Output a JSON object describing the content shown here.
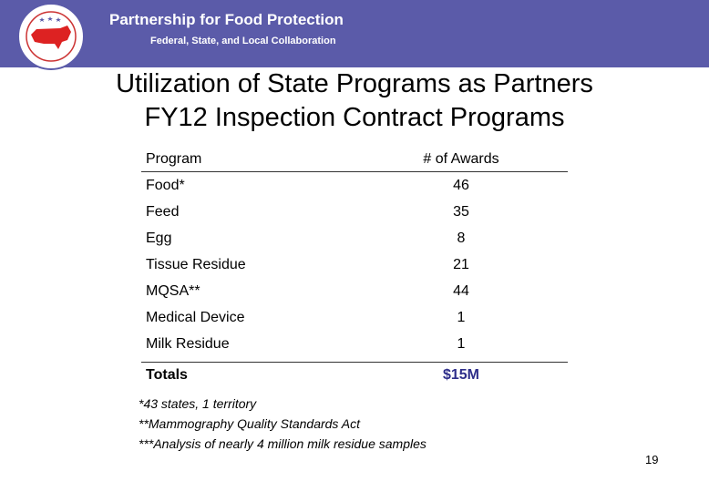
{
  "header": {
    "title": "Partnership for Food Protection",
    "subtitle": "Federal, State, and Local Collaboration"
  },
  "slide": {
    "title": [
      "Utilization of State Programs as Partners",
      "FY12 Inspection Contract Programs"
    ]
  },
  "table": {
    "columns": [
      "Program",
      "# of Awards"
    ],
    "rows": [
      [
        "Food*",
        46
      ],
      [
        "Feed",
        35
      ],
      [
        "Egg",
        8
      ],
      [
        "Tissue Residue",
        21
      ],
      [
        "MQSA**",
        44
      ],
      [
        "Medical Device",
        1
      ],
      [
        "Milk Residue",
        1
      ]
    ],
    "total": [
      "Totals",
      "$15M"
    ]
  },
  "footnotes": [
    "*43 states, 1 territory",
    "**Mammography Quality Standards Act",
    "***Analysis of nearly 4 million milk residue samples"
  ],
  "page_number": 19
}
